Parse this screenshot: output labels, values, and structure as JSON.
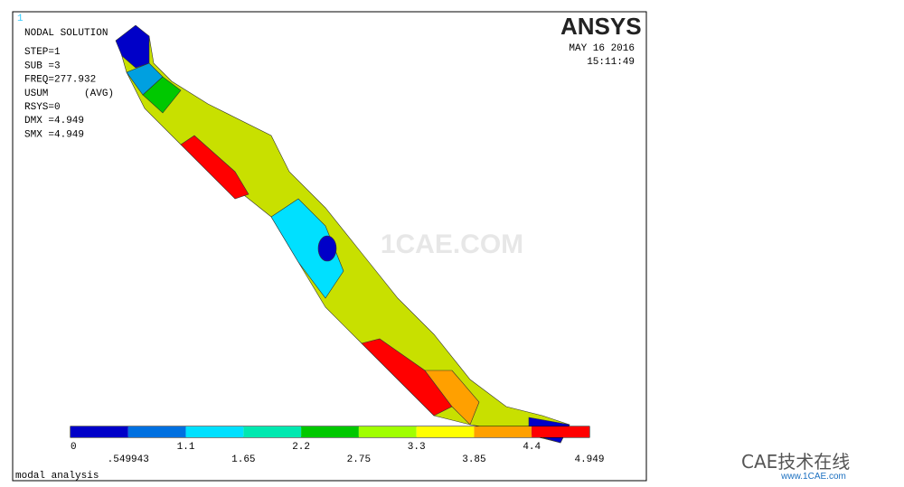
{
  "viewport": {
    "number": "1"
  },
  "info": [
    "NODAL SOLUTION",
    "STEP=1",
    "SUB =3",
    "FREQ=277.932",
    "USUM      (AVG)",
    "RSYS=0",
    "DMX =4.949",
    "SMX =4.949"
  ],
  "logo": "ANSYS",
  "date": "MAY 16 2016",
  "time": "15:11:49",
  "legend": {
    "labels_top": [
      "0",
      "1.1",
      "2.2",
      "3.3",
      "4.4"
    ],
    "labels_bottom": [
      ".549943",
      "1.65",
      "2.75",
      "3.85",
      "4.949"
    ],
    "colors": [
      "#0000c8",
      "#0070e0",
      "#00e0ff",
      "#00e8b0",
      "#00c800",
      "#a0ff00",
      "#ffff00",
      "#ffa000",
      "#ff0000"
    ]
  },
  "footer": "modal analysis",
  "watermark": "1CAE.COM",
  "brand": {
    "name": "CAE技术在线",
    "url": "www.1CAE.com"
  }
}
